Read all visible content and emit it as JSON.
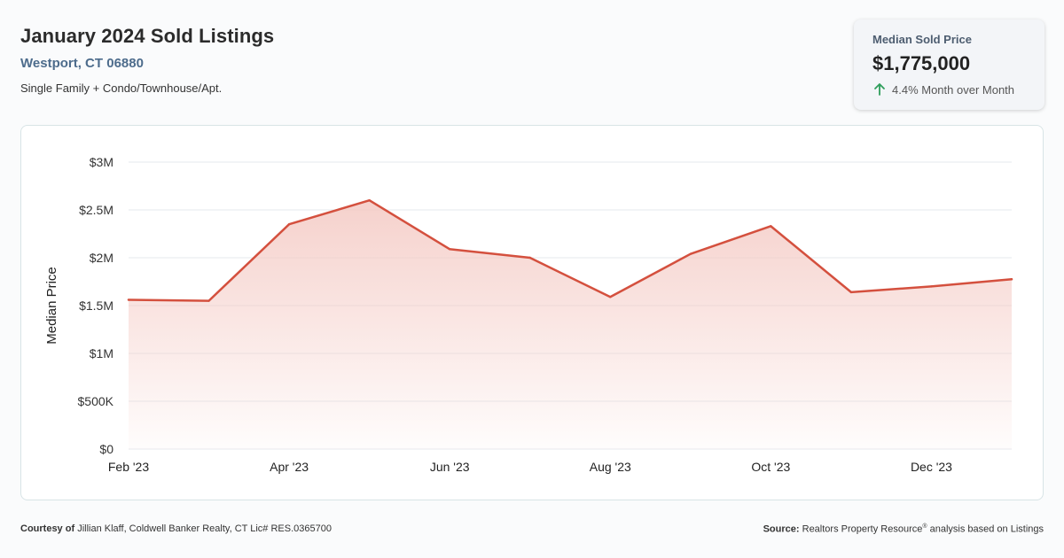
{
  "header": {
    "title": "January 2024 Sold Listings",
    "location": "Westport, CT 06880",
    "property_types": "Single Family + Condo/Townhouse/Apt."
  },
  "kpi": {
    "label": "Median Sold Price",
    "value": "$1,775,000",
    "change": "4.4% Month over Month",
    "direction": "up",
    "icon": "arrow-up-icon"
  },
  "colors": {
    "line": "#d4503e",
    "fill_top": "#f4c9c3",
    "arrow": "#2e9e5b"
  },
  "chart_data": {
    "type": "area",
    "ylabel": "Median Price",
    "x": [
      "Feb '23",
      "Mar '23",
      "Apr '23",
      "May '23",
      "Jun '23",
      "Jul '23",
      "Aug '23",
      "Sep '23",
      "Oct '23",
      "Nov '23",
      "Dec '23",
      "Jan '24"
    ],
    "x_tick_labels": [
      "Feb '23",
      "Apr '23",
      "Jun '23",
      "Aug '23",
      "Oct '23",
      "Dec '23"
    ],
    "values": [
      1560000,
      1550000,
      2350000,
      2600000,
      2090000,
      2000000,
      1590000,
      2040000,
      2330000,
      1640000,
      1700000,
      1775000
    ],
    "ylim": [
      0,
      3000000
    ],
    "y_ticks": [
      0,
      500000,
      1000000,
      1500000,
      2000000,
      2500000,
      3000000
    ],
    "y_tick_labels": [
      "$0",
      "$500K",
      "$1M",
      "$1.5M",
      "$2M",
      "$2.5M",
      "$3M"
    ],
    "grid": true
  },
  "footer": {
    "left_label": "Courtesy of",
    "left_text": "Jillian Klaff, Coldwell Banker Realty, CT Lic# RES.0365700",
    "right_label": "Source:",
    "right_text_1": "Realtors Property Resource",
    "right_reg": "®",
    "right_text_2": " analysis based on Listings"
  }
}
